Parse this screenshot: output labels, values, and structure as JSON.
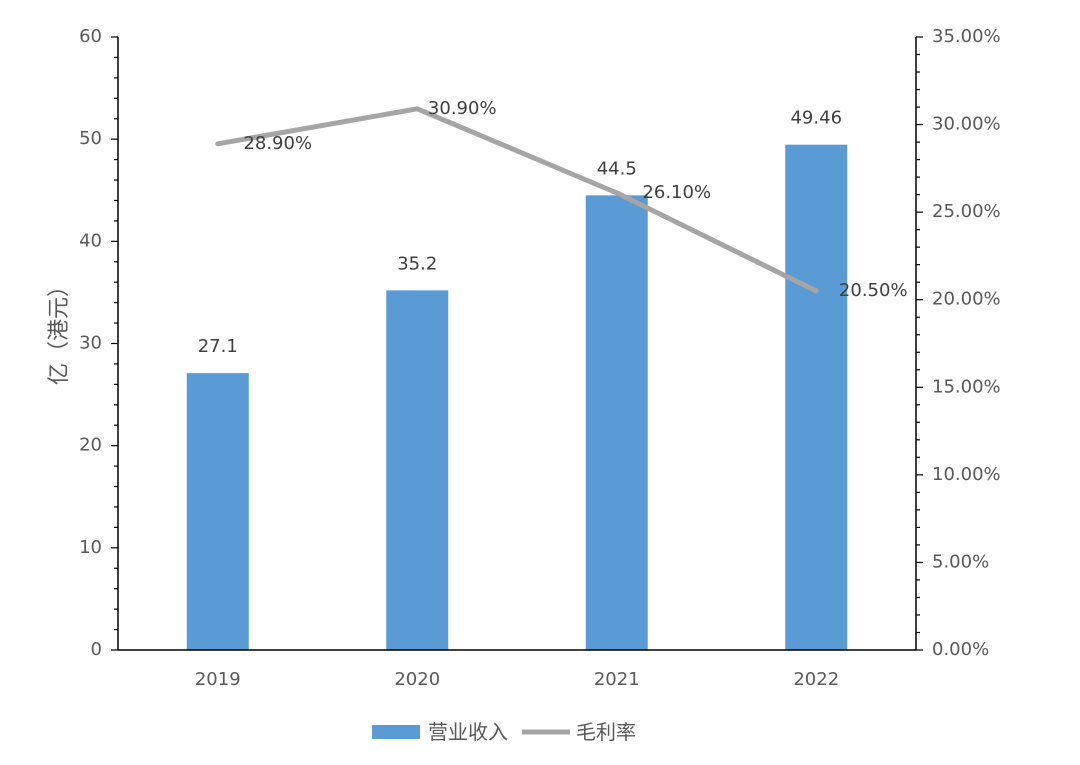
{
  "chart_data": {
    "type": "bar+line",
    "categories": [
      "2019",
      "2020",
      "2021",
      "2022"
    ],
    "series": [
      {
        "name": "营业收入",
        "type": "bar",
        "axis": "left",
        "color": "#5B9BD5",
        "values": [
          27.1,
          35.2,
          44.5,
          49.46
        ],
        "labels": [
          "27.1",
          "35.2",
          "44.5",
          "49.46"
        ]
      },
      {
        "name": "毛利率",
        "type": "line",
        "axis": "right",
        "color": "#A5A5A5",
        "values": [
          0.289,
          0.309,
          0.261,
          0.205
        ],
        "labels": [
          "28.90%",
          "30.90%",
          "26.10%",
          "20.50%"
        ]
      }
    ],
    "ylabel": "亿（港元）",
    "ylim": [
      0,
      60
    ],
    "yticks": [
      "0",
      "10",
      "20",
      "30",
      "40",
      "50",
      "60"
    ],
    "y2lim": [
      0,
      0.35
    ],
    "y2ticks": [
      "0.00%",
      "5.00%",
      "10.00%",
      "15.00%",
      "20.00%",
      "25.00%",
      "30.00%",
      "35.00%"
    ],
    "legend": "bottom",
    "grid": false
  }
}
